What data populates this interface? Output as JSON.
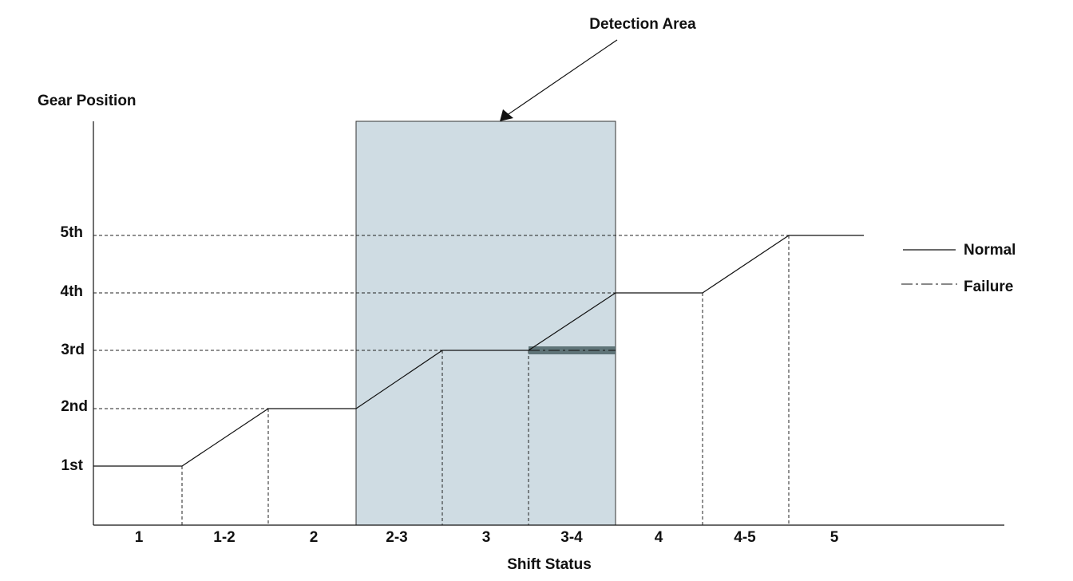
{
  "diagram": {
    "annotation": "Detection Area",
    "y_axis_title": "Gear Position",
    "y_labels": [
      "1st",
      "2nd",
      "3rd",
      "4th",
      "5th"
    ],
    "x_axis_title": "Shift Status",
    "x_labels": [
      "1",
      "1-2",
      "2",
      "2-3",
      "3",
      "3-4",
      "4",
      "4-5",
      "5"
    ],
    "legend": [
      "Normal",
      "Failure"
    ]
  }
}
